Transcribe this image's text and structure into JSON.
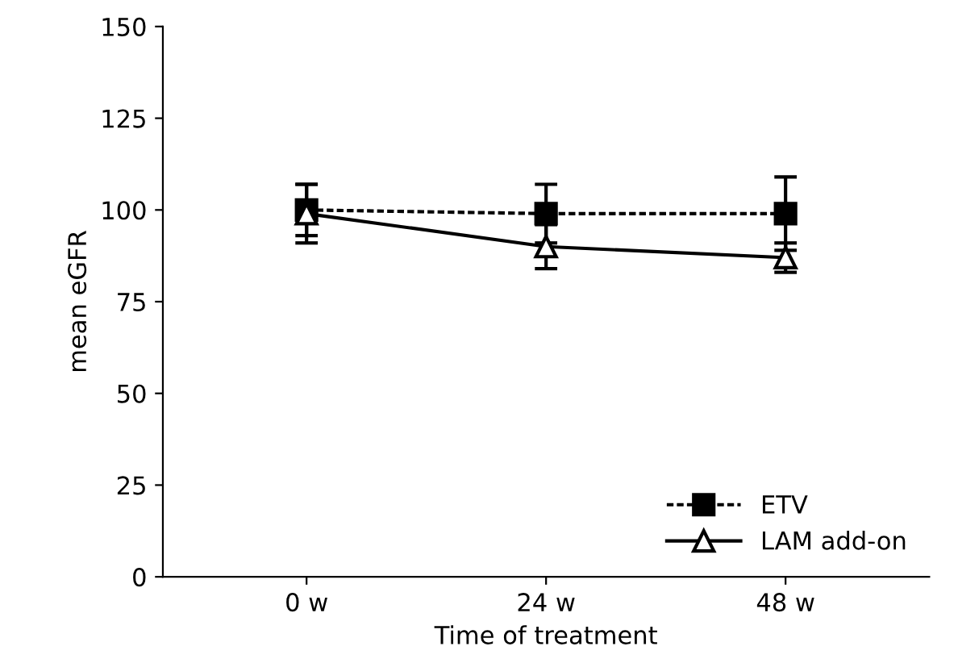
{
  "chart_data": {
    "type": "line",
    "xlabel": "Time of treatment",
    "ylabel": "mean eGFR",
    "categories": [
      "0 w",
      "24 w",
      "48 w"
    ],
    "series": [
      {
        "name": "ETV",
        "color": "#000000",
        "values": [
          100,
          99,
          99
        ],
        "errors": [
          7,
          8,
          10
        ],
        "marker": "square",
        "line_style": "dashed"
      },
      {
        "name": "LAM add-on",
        "color": "#000000",
        "values": [
          99,
          90,
          87
        ],
        "errors": [
          8,
          6,
          4
        ],
        "marker": "triangle",
        "line_style": "solid"
      }
    ],
    "ylim": [
      0,
      150
    ],
    "yticks": [
      0,
      25,
      50,
      75,
      100,
      125,
      150
    ],
    "grid": false,
    "legend": "bottom right"
  }
}
